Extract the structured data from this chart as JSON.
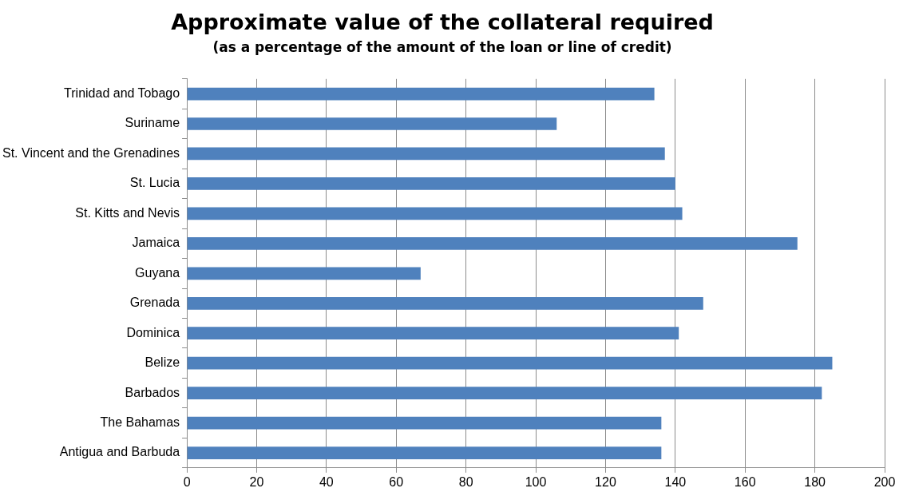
{
  "chart_data": {
    "type": "bar",
    "orientation": "horizontal",
    "title": "Approximate value of the collateral required",
    "subtitle": "(as a percentage of the amount of the loan or line of credit)",
    "categories": [
      "Trinidad and Tobago",
      "Suriname",
      "St. Vincent and the Grenadines",
      "St. Lucia",
      "St. Kitts and Nevis",
      "Jamaica",
      "Guyana",
      "Grenada",
      "Dominica",
      "Belize",
      "Barbados",
      "The Bahamas",
      "Antigua and Barbuda"
    ],
    "values": [
      134,
      106,
      137,
      140,
      142,
      175,
      67,
      148,
      141,
      185,
      182,
      136,
      136
    ],
    "color": "#4f81bd",
    "xlim": [
      0,
      200
    ],
    "xticks": [
      0,
      20,
      40,
      60,
      80,
      100,
      120,
      140,
      160,
      180,
      200
    ],
    "grid": "x",
    "legend": false
  }
}
